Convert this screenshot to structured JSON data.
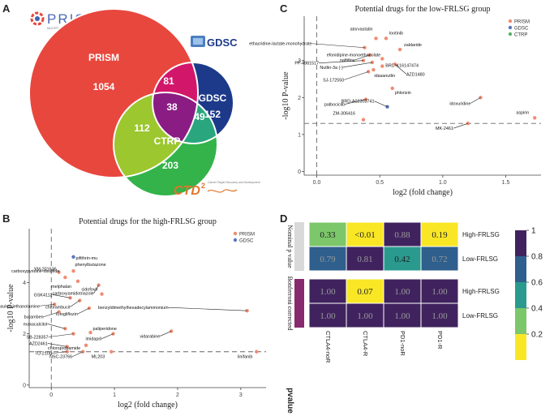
{
  "panel_a": {
    "letter": "A",
    "logos": {
      "prism_name": "PRISM",
      "prism_tagline": "MULTIPLEXED CELL LINE PROFILING",
      "gdsc": "GDSC",
      "ctd2": "CTD",
      "ctd2_sup": "2",
      "ctd2_tagline": "Cancer Target Discovery and Development"
    },
    "venn": {
      "sets": [
        {
          "name": "PRISM",
          "color": "#e8473d"
        },
        {
          "name": "GDSC",
          "color": "#1d3a8a"
        },
        {
          "name": "CTRP",
          "color": "#33b34a"
        }
      ],
      "regions": {
        "prism_only": "1054",
        "prism_gdsc": "81",
        "gdsc_only": "152",
        "all_three": "38",
        "gdsc_ctrp": "49",
        "prism_ctrp": "112",
        "ctrp_only": "203"
      }
    }
  },
  "panel_b": {
    "letter": "B",
    "title": "Potential drugs for the high-FRLSG group",
    "xlabel": "log2 (fold change)",
    "ylabel": "-log10 P-value",
    "legend": [
      {
        "name": "PRISM",
        "color": "#f08c73"
      },
      {
        "name": "GDSC",
        "color": "#5a77bf"
      }
    ],
    "x_ticks": [
      "0",
      "1",
      "2",
      "3"
    ],
    "y_ticks": [
      "0",
      "2",
      "4"
    ]
  },
  "panel_c": {
    "letter": "C",
    "title": "Potential drugs for the low-FRLSG group",
    "xlabel": "log2 (fold change)",
    "ylabel": "-log10 P-value",
    "legend": [
      {
        "name": "PRISM",
        "color": "#f08c73"
      },
      {
        "name": "GDSC",
        "color": "#5a77bf"
      },
      {
        "name": "CTRP",
        "color": "#59b26b"
      }
    ],
    "x_ticks": [
      "0.0",
      "0.5",
      "1.0",
      "1.5"
    ],
    "y_ticks": [
      "0",
      "1",
      "2",
      "3"
    ]
  },
  "panel_d": {
    "letter": "D",
    "title": "pvalue",
    "columns": [
      "CTLA4-noR",
      "CTLA4-R",
      "PD1-noR",
      "PD1-R"
    ],
    "rows": [
      "High-FRLSG",
      "Low-FRLSG",
      "High-FRLSG",
      "Low-FRLSG"
    ],
    "groups": [
      "Nominal p value",
      "Bonferroni corrected"
    ],
    "cells": [
      [
        "0.33",
        "<0.01",
        "0.88",
        "0.19"
      ],
      [
        "0.79",
        "0.81",
        "0.42",
        "0.72"
      ],
      [
        "1.00",
        "0.07",
        "1.00",
        "1.00"
      ],
      [
        "1.00",
        "1.00",
        "1.00",
        "1.00"
      ]
    ],
    "colorbar_ticks": [
      "1",
      "0.8",
      "0.6",
      "0.4",
      "0.2"
    ]
  },
  "chart_data": [
    {
      "type": "scatter",
      "title": "Potential drugs for the high-FRLSG group",
      "xlabel": "log2 (fold change)",
      "ylabel": "-log10 P-value",
      "xlim": [
        -0.35,
        3.4
      ],
      "ylim": [
        -0.1,
        6.1
      ],
      "x_ticks": [
        0,
        1,
        2,
        3
      ],
      "y_ticks": [
        0,
        2,
        4
      ],
      "legend_position": "top-right",
      "series": [
        {
          "name": "PRISM",
          "color": "#f08c73",
          "points": [
            {
              "x": 0.35,
              "y": 4.45,
              "label": "phenylbutazone"
            },
            {
              "x": 0.12,
              "y": 4.4,
              "label": "YM-201636"
            },
            {
              "x": 0.22,
              "y": 4.2,
              "label": "carboxypyridine-disulfide"
            },
            {
              "x": 0.42,
              "y": 4.05,
              "label": "melphalan"
            },
            {
              "x": 0.75,
              "y": 3.9,
              "label": "carboxyamidotriazole"
            },
            {
              "x": 0.8,
              "y": 3.55,
              "label": "cidofovir"
            },
            {
              "x": 0.3,
              "y": 3.4,
              "label": "GSK4112"
            },
            {
              "x": 0.45,
              "y": 3.3,
              "label": "chlorambucil"
            },
            {
              "x": 0.05,
              "y": 3.15,
              "label": "ecamsule-triethanolamine"
            },
            {
              "x": 0.6,
              "y": 3.0,
              "label": "tofogliflozin"
            },
            {
              "x": 0.12,
              "y": 2.85,
              "label": "butamben"
            },
            {
              "x": 0.22,
              "y": 2.2,
              "label": "maxacalcitol"
            },
            {
              "x": 0.35,
              "y": 2.0,
              "label": "SB-228357"
            },
            {
              "x": 0.62,
              "y": 2.05,
              "label": "paliperidone"
            },
            {
              "x": 0.98,
              "y": 2.0,
              "label": "imidapril"
            },
            {
              "x": 1.9,
              "y": 2.1,
              "label": "vidarabine"
            },
            {
              "x": 3.1,
              "y": 2.9,
              "label": "benzyldimethylhexadecylammonium"
            },
            {
              "x": 0.25,
              "y": 1.5,
              "label": "AZD2461"
            },
            {
              "x": 0.55,
              "y": 1.55,
              "label": "chloropropamide"
            },
            {
              "x": 0.25,
              "y": 1.3,
              "label": "TU-2100"
            },
            {
              "x": 0.5,
              "y": 1.3,
              "label": "NSC-23766"
            },
            {
              "x": 0.95,
              "y": 1.3,
              "label": "ML203"
            },
            {
              "x": 3.25,
              "y": 1.3,
              "label": "linifanib"
            }
          ]
        },
        {
          "name": "GDSC",
          "color": "#5a77bf",
          "points": [
            {
              "x": 0.35,
              "y": 5.0,
              "label": "pifithrin-mu"
            }
          ]
        }
      ]
    },
    {
      "type": "scatter",
      "title": "Potential drugs for the low-FRLSG group",
      "xlabel": "log2 (fold change)",
      "ylabel": "-log10 P-value",
      "xlim": [
        -0.1,
        1.78
      ],
      "ylim": [
        -0.1,
        4.2
      ],
      "x_ticks": [
        0.0,
        0.5,
        1.0,
        1.5
      ],
      "y_ticks": [
        0,
        1,
        2,
        3
      ],
      "legend_position": "top-right",
      "series": [
        {
          "name": "PRISM",
          "color": "#f08c73",
          "points": [
            {
              "x": 0.47,
              "y": 3.6,
              "label": "atorvastatin"
            },
            {
              "x": 0.55,
              "y": 3.6,
              "label": "lootinib"
            },
            {
              "x": 0.38,
              "y": 3.35,
              "label": "ethacridine-lactate-monohydrate"
            },
            {
              "x": 0.66,
              "y": 3.3,
              "label": "zaldaride"
            },
            {
              "x": 0.42,
              "y": 3.15,
              "label": "naftifine"
            },
            {
              "x": 0.52,
              "y": 3.05,
              "label": "efonidipine-monoethanolate"
            },
            {
              "x": 0.37,
              "y": 3.0,
              "label": "PF-4981517"
            },
            {
              "x": 0.44,
              "y": 2.95,
              "label": "Nutlin-3a (-)"
            },
            {
              "x": 0.52,
              "y": 2.85,
              "label": "BRD-K16147474"
            },
            {
              "x": 0.62,
              "y": 2.9,
              "label": "AZD1480"
            },
            {
              "x": 0.45,
              "y": 2.75,
              "label": "idasanutlin"
            },
            {
              "x": 0.41,
              "y": 2.7,
              "label": "SJ-172550"
            },
            {
              "x": 0.6,
              "y": 2.25,
              "label": "phlorizin"
            },
            {
              "x": 0.39,
              "y": 1.95,
              "label": "palbociclib"
            },
            {
              "x": 1.3,
              "y": 2.0,
              "label": "idoxuridine"
            },
            {
              "x": 0.37,
              "y": 1.4,
              "label": "ZM-306416"
            },
            {
              "x": 1.2,
              "y": 1.3,
              "label": "MK-2461"
            },
            {
              "x": 1.73,
              "y": 1.45,
              "label": "aspirin"
            }
          ]
        },
        {
          "name": "GDSC",
          "color": "#5a77bf",
          "points": [
            {
              "x": 0.56,
              "y": 1.75,
              "label": "BRD-A02303741"
            }
          ]
        },
        {
          "name": "CTRP",
          "color": "#59b26b",
          "points": []
        }
      ]
    },
    {
      "type": "heatmap",
      "title": "pvalue",
      "columns": [
        "CTLA4-noR",
        "CTLA4-R",
        "PD1-noR",
        "PD1-R"
      ],
      "rows": [
        "High-FRLSG",
        "Low-FRLSG",
        "High-FRLSG",
        "Low-FRLSG"
      ],
      "groups": [
        "Nominal p value",
        "Bonferroni corrected"
      ],
      "values": [
        [
          0.33,
          0.005,
          0.88,
          0.19
        ],
        [
          0.79,
          0.81,
          0.42,
          0.72
        ],
        [
          1.0,
          0.07,
          1.0,
          1.0
        ],
        [
          1.0,
          1.0,
          1.0,
          1.0
        ]
      ],
      "color_scale": [
        "#f9e726",
        "#7cc76a",
        "#2a9a8e",
        "#2f5f8c",
        "#40235e"
      ],
      "colorbar_range": [
        0,
        1
      ]
    }
  ]
}
